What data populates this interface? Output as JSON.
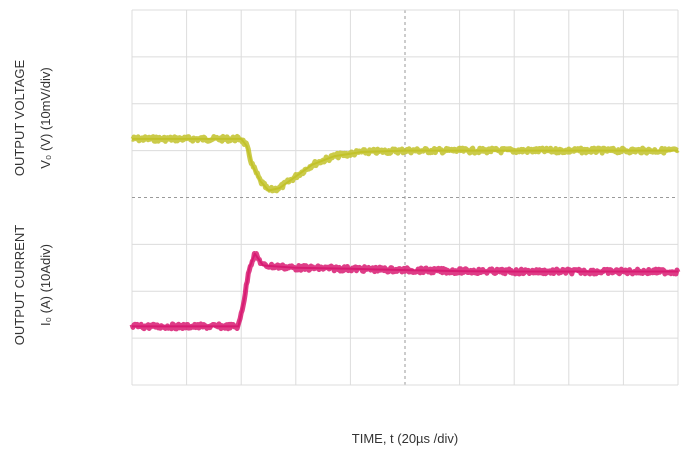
{
  "chart_data": {
    "type": "line",
    "xlabel": "TIME, t (20µs /div)",
    "grid": true,
    "divisions": {
      "x": 10,
      "y": 8
    },
    "panels": [
      {
        "ylabel_line1": "OUTPUT VOLTAGE",
        "ylabel_line2": "V₀ (V) (10mV/div)",
        "series": [
          {
            "color": "#c2c22a",
            "points": [
              [
                0,
                1.25
              ],
              [
                2.0,
                1.25
              ],
              [
                2.1,
                1.1
              ],
              [
                2.2,
                0.7
              ],
              [
                2.35,
                0.35
              ],
              [
                2.5,
                0.15
              ],
              [
                2.7,
                0.2
              ],
              [
                3.0,
                0.45
              ],
              [
                3.3,
                0.7
              ],
              [
                3.7,
                0.88
              ],
              [
                4.2,
                0.97
              ],
              [
                5.0,
                1.0
              ],
              [
                6.0,
                1.0
              ],
              [
                7.0,
                1.0
              ],
              [
                8.0,
                1.0
              ],
              [
                9.0,
                1.0
              ],
              [
                10.0,
                1.0
              ]
            ]
          }
        ]
      },
      {
        "ylabel_line1": "OUTPUT CURRENT",
        "ylabel_line2": "I₀ (A) (10Adiv)",
        "series": [
          {
            "color": "#d81b72",
            "points": [
              [
                0,
                -2.75
              ],
              [
                1.95,
                -2.75
              ],
              [
                2.05,
                -2.2
              ],
              [
                2.15,
                -1.5
              ],
              [
                2.25,
                -1.2
              ],
              [
                2.4,
                -1.45
              ],
              [
                3.0,
                -1.5
              ],
              [
                4.0,
                -1.52
              ],
              [
                5.0,
                -1.55
              ],
              [
                6.0,
                -1.57
              ],
              [
                7.0,
                -1.58
              ],
              [
                8.0,
                -1.58
              ],
              [
                9.0,
                -1.58
              ],
              [
                10.0,
                -1.58
              ]
            ]
          }
        ]
      }
    ]
  }
}
